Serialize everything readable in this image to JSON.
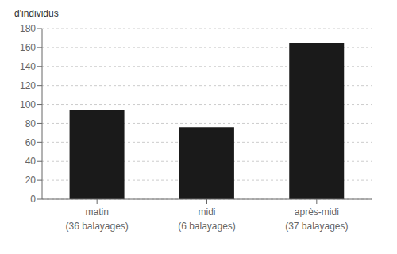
{
  "chart_data": {
    "type": "bar",
    "categories": [
      "matin",
      "midi",
      "après-midi"
    ],
    "subcategories": [
      "(36 balayages)",
      "(6 balayages)",
      "(37 balayages)"
    ],
    "values": [
      94,
      76,
      165
    ],
    "color": "#1a1a1a",
    "ylabel": "d'individus",
    "ylim": [
      0,
      180
    ],
    "yticks": [
      0,
      20,
      40,
      60,
      80,
      100,
      120,
      140,
      160,
      180
    ],
    "grid": true
  }
}
